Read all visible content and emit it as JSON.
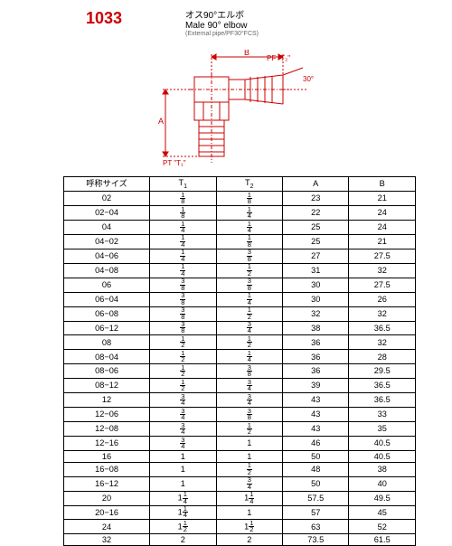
{
  "header": {
    "part_number": "1033",
    "part_number_color": "#cc0000",
    "title_jp": "オス90°エルボ",
    "title_en": "Male 90° elbow",
    "subtitle": "(External pipe/PF30°FCS)"
  },
  "diagram": {
    "stroke_color": "#cc0000",
    "labels": {
      "B": "B",
      "A": "A",
      "angle": "30°",
      "pf_t2": "PF \"T₂\"",
      "pt_t1": "PT \"T₁\""
    }
  },
  "table": {
    "header_bg": "#ffffff",
    "columns": [
      {
        "key": "size",
        "label": "呼称サイズ"
      },
      {
        "key": "t1",
        "label": "T",
        "sub": "1"
      },
      {
        "key": "t2",
        "label": "T",
        "sub": "2"
      },
      {
        "key": "a",
        "label": "A"
      },
      {
        "key": "b",
        "label": "B"
      }
    ],
    "rows": [
      {
        "size": "02",
        "t1": [
          "1",
          "8"
        ],
        "t2": [
          "1",
          "8"
        ],
        "a": "23",
        "b": "21"
      },
      {
        "size": "02−04",
        "t1": [
          "1",
          "8"
        ],
        "t2": [
          "1",
          "4"
        ],
        "a": "22",
        "b": "24"
      },
      {
        "size": "04",
        "t1": [
          "1",
          "4"
        ],
        "t2": [
          "1",
          "4"
        ],
        "a": "25",
        "b": "24"
      },
      {
        "size": "04−02",
        "t1": [
          "1",
          "4"
        ],
        "t2": [
          "1",
          "8"
        ],
        "a": "25",
        "b": "21"
      },
      {
        "size": "04−06",
        "t1": [
          "1",
          "4"
        ],
        "t2": [
          "3",
          "8"
        ],
        "a": "27",
        "b": "27.5"
      },
      {
        "size": "04−08",
        "t1": [
          "1",
          "4"
        ],
        "t2": [
          "1",
          "2"
        ],
        "a": "31",
        "b": "32"
      },
      {
        "size": "06",
        "t1": [
          "3",
          "8"
        ],
        "t2": [
          "3",
          "8"
        ],
        "a": "30",
        "b": "27.5"
      },
      {
        "size": "06−04",
        "t1": [
          "3",
          "8"
        ],
        "t2": [
          "1",
          "4"
        ],
        "a": "30",
        "b": "26"
      },
      {
        "size": "06−08",
        "t1": [
          "3",
          "8"
        ],
        "t2": [
          "1",
          "2"
        ],
        "a": "32",
        "b": "32"
      },
      {
        "size": "06−12",
        "t1": [
          "3",
          "8"
        ],
        "t2": [
          "3",
          "4"
        ],
        "a": "38",
        "b": "36.5"
      },
      {
        "size": "08",
        "t1": [
          "1",
          "2"
        ],
        "t2": [
          "1",
          "2"
        ],
        "a": "36",
        "b": "32"
      },
      {
        "size": "08−04",
        "t1": [
          "1",
          "2"
        ],
        "t2": [
          "1",
          "4"
        ],
        "a": "36",
        "b": "28"
      },
      {
        "size": "08−06",
        "t1": [
          "1",
          "2"
        ],
        "t2": [
          "3",
          "8"
        ],
        "a": "36",
        "b": "29.5"
      },
      {
        "size": "08−12",
        "t1": [
          "1",
          "2"
        ],
        "t2": [
          "3",
          "4"
        ],
        "a": "39",
        "b": "36.5"
      },
      {
        "size": "12",
        "t1": [
          "3",
          "4"
        ],
        "t2": [
          "3",
          "4"
        ],
        "a": "43",
        "b": "36.5"
      },
      {
        "size": "12−06",
        "t1": [
          "3",
          "4"
        ],
        "t2": [
          "3",
          "8"
        ],
        "a": "43",
        "b": "33"
      },
      {
        "size": "12−08",
        "t1": [
          "3",
          "4"
        ],
        "t2": [
          "1",
          "2"
        ],
        "a": "43",
        "b": "35"
      },
      {
        "size": "12−16",
        "t1": [
          "3",
          "4"
        ],
        "t2": "1",
        "a": "46",
        "b": "40.5"
      },
      {
        "size": "16",
        "t1": "1",
        "t2": "1",
        "a": "50",
        "b": "40.5"
      },
      {
        "size": "16−08",
        "t1": "1",
        "t2": [
          "1",
          "2"
        ],
        "a": "48",
        "b": "38"
      },
      {
        "size": "16−12",
        "t1": "1",
        "t2": [
          "3",
          "4"
        ],
        "a": "50",
        "b": "40"
      },
      {
        "size": "20",
        "t1": [
          "1",
          "1/4"
        ],
        "t2": [
          "1",
          "1/4"
        ],
        "a": "57.5",
        "b": "49.5"
      },
      {
        "size": "20−16",
        "t1": [
          "1",
          "1/4"
        ],
        "t2": "1",
        "a": "57",
        "b": "45"
      },
      {
        "size": "24",
        "t1": [
          "1",
          "1/2"
        ],
        "t2": [
          "1",
          "1/2"
        ],
        "a": "63",
        "b": "52"
      },
      {
        "size": "32",
        "t1": "2",
        "t2": "2",
        "a": "73.5",
        "b": "61.5"
      }
    ]
  }
}
